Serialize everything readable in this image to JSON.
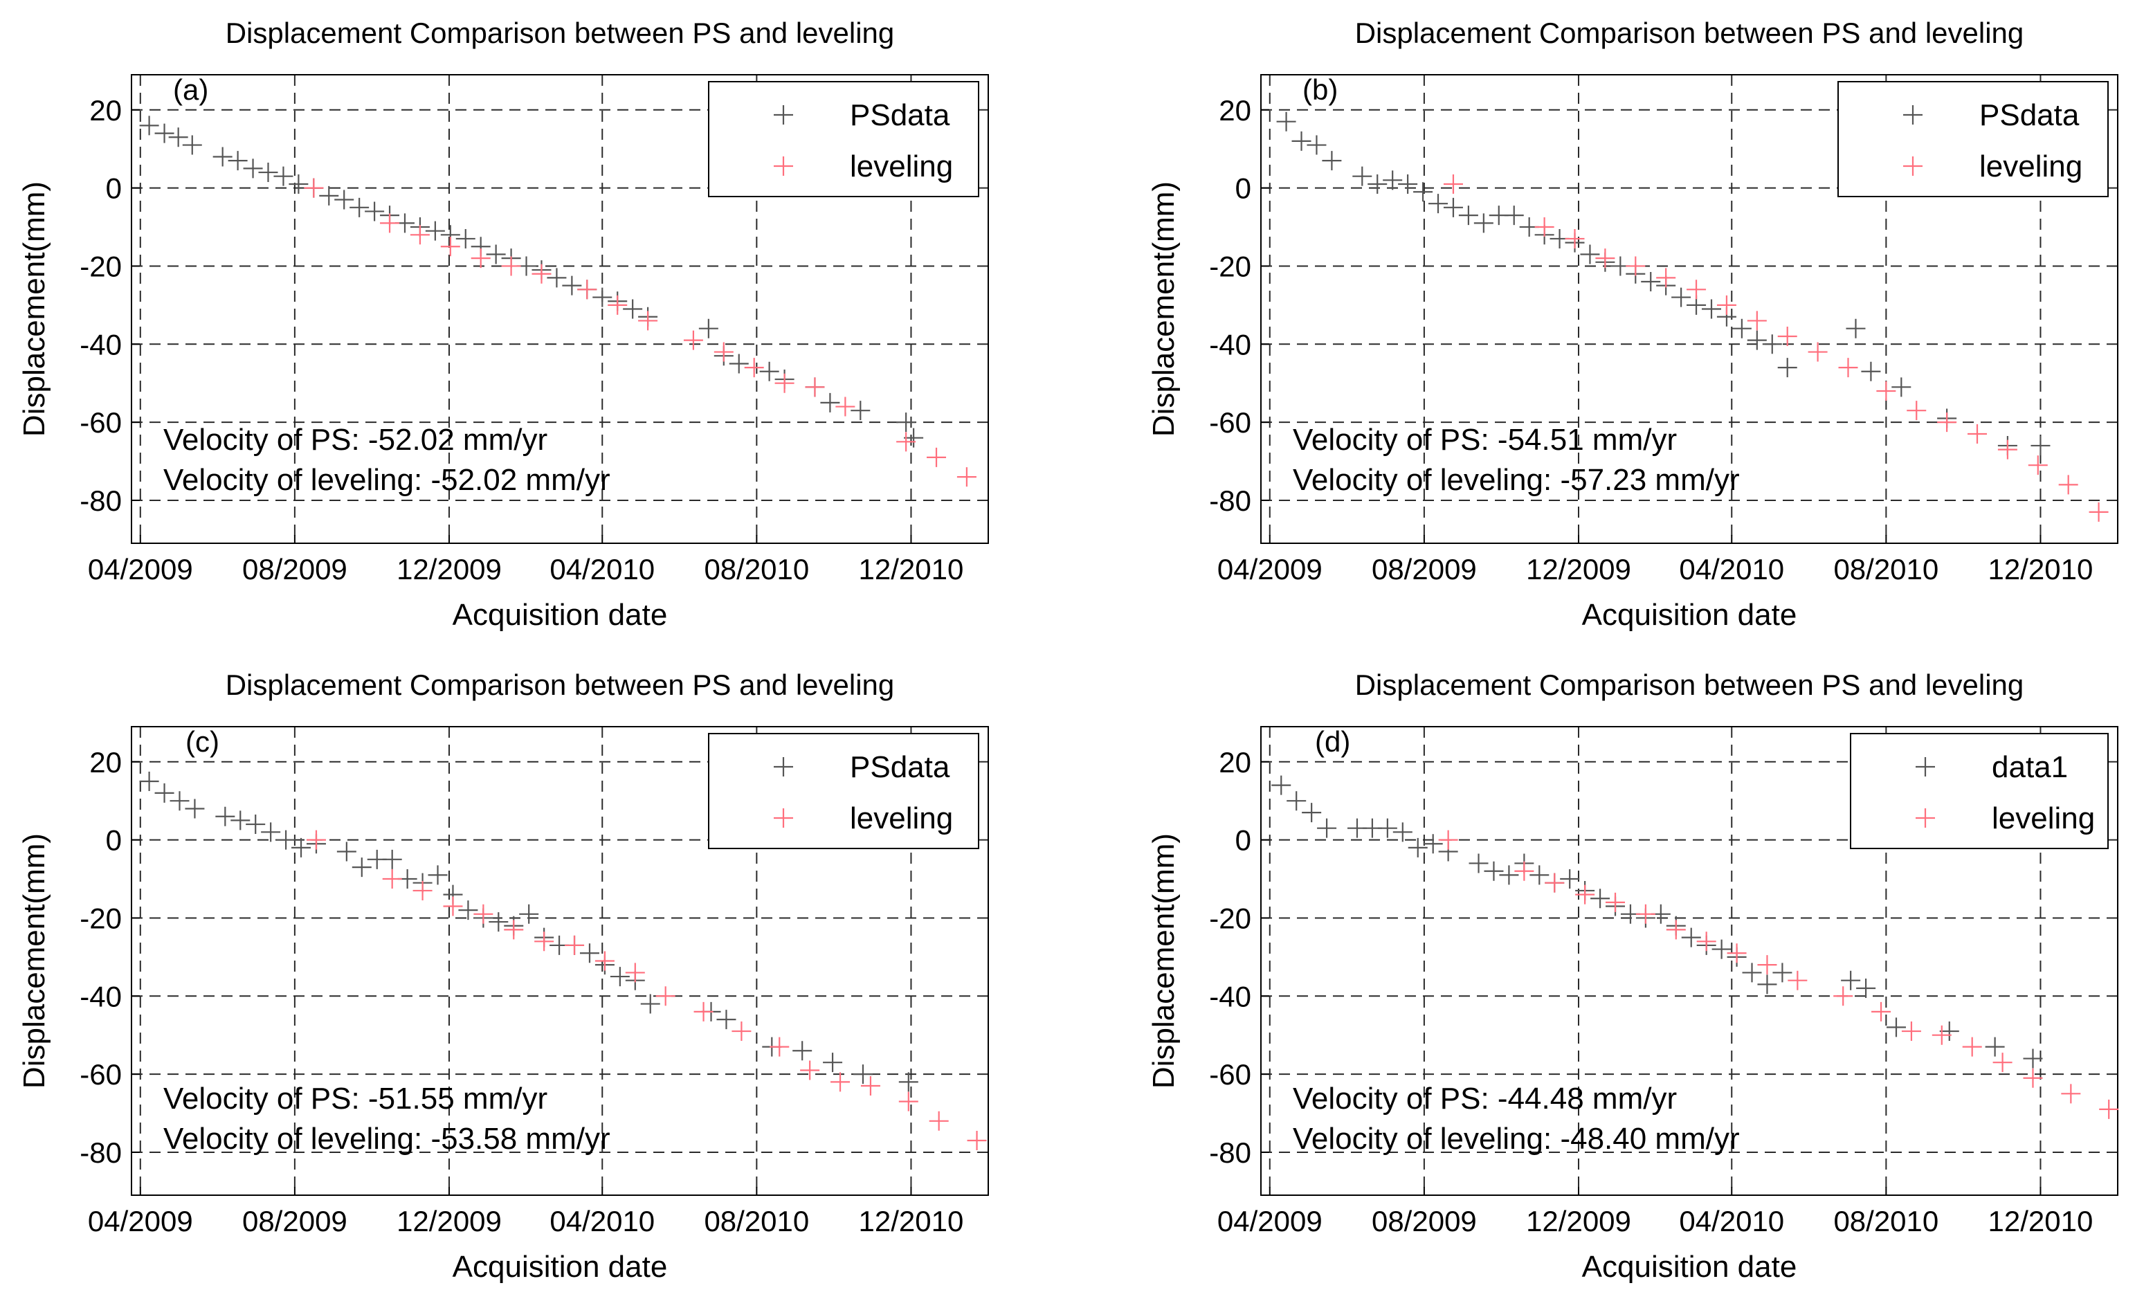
{
  "colors": {
    "ps": "#555555",
    "leveling": "#ff6f7d"
  },
  "chart_data": [
    {
      "type": "scatter",
      "panel_label": "(a)",
      "title": "Displacement Comparison between PS and leveling",
      "xlabel": "Acquisition date",
      "ylabel": "Displacement(mm)",
      "x_ticks": [
        "04/2009",
        "08/2009",
        "12/2009",
        "04/2010",
        "08/2010",
        "12/2010"
      ],
      "y_ticks": [
        20,
        0,
        -20,
        -40,
        -60,
        -80
      ],
      "xlim": [
        "2009-03-25",
        "2011-01-31"
      ],
      "ylim": [
        -91,
        29
      ],
      "grid": true,
      "legend_position": "top-right",
      "annotation_lines": [
        "Velocity of PS: -52.02 mm/yr",
        "Velocity of leveling: -52.02 mm/yr"
      ],
      "series": [
        {
          "name": "PSdata",
          "color": "#555555",
          "x": [
            "2009-04-08",
            "2009-04-20",
            "2009-05-01",
            "2009-05-12",
            "2009-06-05",
            "2009-06-17",
            "2009-06-29",
            "2009-07-11",
            "2009-07-23",
            "2009-08-04",
            "2009-08-16",
            "2009-08-28",
            "2009-09-09",
            "2009-09-21",
            "2009-10-03",
            "2009-10-15",
            "2009-10-27",
            "2009-11-08",
            "2009-11-20",
            "2009-12-02",
            "2009-12-14",
            "2009-12-26",
            "2010-01-07",
            "2010-01-19",
            "2010-01-31",
            "2010-02-12",
            "2010-02-24",
            "2010-03-08",
            "2010-03-20",
            "2010-04-01",
            "2010-04-13",
            "2010-04-25",
            "2010-05-07",
            "2010-06-24",
            "2010-07-06",
            "2010-07-18",
            "2010-08-11",
            "2010-08-23",
            "2010-09-16",
            "2010-09-28",
            "2010-10-22",
            "2010-11-27",
            "2010-12-03"
          ],
          "y": [
            16,
            14,
            13,
            11,
            8,
            7,
            5,
            4,
            3,
            1,
            0,
            -2,
            -3,
            -5,
            -6,
            -7,
            -9,
            -10,
            -11,
            -12,
            -13,
            -15,
            -17,
            -18,
            -20,
            -21,
            -23,
            -25,
            -26,
            -28,
            -29,
            -31,
            -33,
            -36,
            -43,
            -45,
            -47,
            -49,
            -51,
            -55,
            -57,
            -60,
            -64
          ]
        },
        {
          "name": "leveling",
          "color": "#ff6f7d",
          "x": [
            "2009-08-16",
            "2009-10-15",
            "2009-11-08",
            "2009-12-02",
            "2009-12-26",
            "2010-01-19",
            "2010-02-12",
            "2010-03-20",
            "2010-04-13",
            "2010-05-07",
            "2010-06-12",
            "2010-07-06",
            "2010-07-30",
            "2010-08-23",
            "2010-09-16",
            "2010-10-10",
            "2010-11-27",
            "2010-12-21",
            "2011-01-14"
          ],
          "y": [
            0,
            -9,
            -12,
            -15,
            -18,
            -20,
            -22,
            -26,
            -30,
            -34,
            -39,
            -42,
            -46,
            -50,
            -51,
            -56,
            -65,
            -69,
            -74
          ]
        }
      ]
    },
    {
      "type": "scatter",
      "panel_label": "(b)",
      "title": "Displacement Comparison between PS and leveling",
      "xlabel": "Acquisition date",
      "ylabel": "Displacement(mm)",
      "x_ticks": [
        "04/2009",
        "08/2009",
        "12/2009",
        "04/2010",
        "08/2010",
        "12/2010"
      ],
      "y_ticks": [
        20,
        0,
        -20,
        -40,
        -60,
        -80
      ],
      "xlim": [
        "2009-03-25",
        "2011-01-31"
      ],
      "ylim": [
        -91,
        29
      ],
      "grid": true,
      "legend_position": "top-right",
      "annotation_lines": [
        "Velocity of PS: -54.51 mm/yr",
        "Velocity of leveling: -57.23 mm/yr"
      ],
      "series": [
        {
          "name": "PSdata",
          "color": "#555555",
          "x": [
            "2009-04-14",
            "2009-04-26",
            "2009-05-08",
            "2009-05-20",
            "2009-06-13",
            "2009-06-25",
            "2009-07-07",
            "2009-07-19",
            "2009-07-31",
            "2009-08-12",
            "2009-08-24",
            "2009-09-05",
            "2009-09-17",
            "2009-09-29",
            "2009-10-11",
            "2009-10-23",
            "2009-11-04",
            "2009-11-16",
            "2009-11-28",
            "2009-12-10",
            "2009-12-22",
            "2010-01-03",
            "2010-01-15",
            "2010-01-27",
            "2010-02-08",
            "2010-02-20",
            "2010-03-04",
            "2010-03-16",
            "2010-03-28",
            "2010-04-09",
            "2010-04-21",
            "2010-05-03",
            "2010-05-15",
            "2010-07-08",
            "2010-07-20",
            "2010-08-13",
            "2010-09-18",
            "2010-11-05",
            "2010-12-01"
          ],
          "y": [
            17,
            12,
            11,
            7,
            3,
            1,
            2,
            1,
            -1,
            -4,
            -5,
            -7,
            -9,
            -7,
            -7,
            -10,
            -12,
            -13,
            -14,
            -17,
            -19,
            -20,
            -22,
            -24,
            -25,
            -28,
            -30,
            -31,
            -33,
            -36,
            -39,
            -40,
            -46,
            -36,
            -47,
            -51,
            -59,
            -66,
            -66
          ]
        },
        {
          "name": "leveling",
          "color": "#ff6f7d",
          "x": [
            "2009-08-24",
            "2009-11-04",
            "2009-11-28",
            "2009-12-22",
            "2010-01-15",
            "2010-02-08",
            "2010-03-04",
            "2010-03-28",
            "2010-04-21",
            "2010-05-15",
            "2010-06-08",
            "2010-07-02",
            "2010-08-01",
            "2010-08-25",
            "2010-09-18",
            "2010-10-12",
            "2010-11-05",
            "2010-11-29",
            "2010-12-23",
            "2011-01-16"
          ],
          "y": [
            1,
            -10,
            -13,
            -18,
            -20,
            -23,
            -26,
            -30,
            -34,
            -38,
            -42,
            -46,
            -52,
            -57,
            -60,
            -63,
            -67,
            -71,
            -76,
            -83
          ]
        }
      ]
    },
    {
      "type": "scatter",
      "panel_label": "(c)",
      "title": "Displacement Comparison between PS and leveling",
      "xlabel": "Acquisition date",
      "ylabel": "Displacement(mm)",
      "x_ticks": [
        "04/2009",
        "08/2009",
        "12/2009",
        "04/2010",
        "08/2010",
        "12/2010"
      ],
      "y_ticks": [
        20,
        0,
        -20,
        -40,
        -60,
        -80
      ],
      "xlim": [
        "2009-03-25",
        "2011-01-31"
      ],
      "ylim": [
        -91,
        29
      ],
      "grid": true,
      "legend_position": "top-right",
      "annotation_lines": [
        "Velocity of PS: -51.55 mm/yr",
        "Velocity of leveling: -53.58 mm/yr"
      ],
      "series": [
        {
          "name": "PSdata",
          "color": "#555555",
          "x": [
            "2009-04-08",
            "2009-04-20",
            "2009-05-02",
            "2009-05-14",
            "2009-06-07",
            "2009-06-19",
            "2009-07-01",
            "2009-07-13",
            "2009-07-25",
            "2009-08-06",
            "2009-08-18",
            "2009-09-11",
            "2009-09-23",
            "2009-10-05",
            "2009-10-17",
            "2009-10-29",
            "2009-11-10",
            "2009-11-22",
            "2009-12-04",
            "2009-12-16",
            "2009-12-28",
            "2010-01-09",
            "2010-01-21",
            "2010-02-02",
            "2010-02-14",
            "2010-02-26",
            "2010-03-10",
            "2010-03-22",
            "2010-04-03",
            "2010-04-15",
            "2010-04-27",
            "2010-05-09",
            "2010-06-26",
            "2010-07-08",
            "2010-08-13",
            "2010-09-06",
            "2010-09-30",
            "2010-10-24",
            "2010-11-29"
          ],
          "y": [
            15,
            12,
            10,
            8,
            6,
            5,
            4,
            2,
            0,
            -2,
            -1,
            -3,
            -7,
            -5,
            -5,
            -10,
            -11,
            -9,
            -14,
            -18,
            -20,
            -21,
            -22,
            -19,
            -25,
            -27,
            -27,
            -29,
            -32,
            -35,
            -36,
            -42,
            -44,
            -46,
            -53,
            -54,
            -57,
            -60,
            -62
          ]
        },
        {
          "name": "leveling",
          "color": "#ff6f7d",
          "x": [
            "2009-08-18",
            "2009-10-17",
            "2009-11-10",
            "2009-12-04",
            "2009-12-28",
            "2010-01-21",
            "2010-02-14",
            "2010-03-10",
            "2010-04-03",
            "2010-04-27",
            "2010-05-21",
            "2010-06-20",
            "2010-07-20",
            "2010-08-19",
            "2010-09-12",
            "2010-10-06",
            "2010-10-30",
            "2010-11-29",
            "2010-12-23",
            "2011-01-22"
          ],
          "y": [
            0,
            -10,
            -13,
            -17,
            -19,
            -23,
            -26,
            -27,
            -31,
            -34,
            -40,
            -44,
            -49,
            -53,
            -59,
            -62,
            -63,
            -67,
            -72,
            -77
          ]
        }
      ]
    },
    {
      "type": "scatter",
      "panel_label": "(d)",
      "title": "Displacement Comparison between PS and leveling",
      "xlabel": "Acquisition date",
      "ylabel": "Displacement(mm)",
      "x_ticks": [
        "04/2009",
        "08/2009",
        "12/2009",
        "04/2010",
        "08/2010",
        "12/2010"
      ],
      "y_ticks": [
        20,
        0,
        -20,
        -40,
        -60,
        -80
      ],
      "xlim": [
        "2009-03-25",
        "2011-01-31"
      ],
      "ylim": [
        -91,
        29
      ],
      "grid": true,
      "legend_position": "top-right",
      "annotation_lines": [
        "Velocity of PS: -44.48 mm/yr",
        "Velocity of leveling: -48.40 mm/yr"
      ],
      "series": [
        {
          "name": "data1",
          "color": "#555555",
          "x": [
            "2009-04-10",
            "2009-04-22",
            "2009-05-04",
            "2009-05-16",
            "2009-06-09",
            "2009-06-21",
            "2009-07-03",
            "2009-07-15",
            "2009-07-27",
            "2009-08-08",
            "2009-08-20",
            "2009-09-13",
            "2009-09-25",
            "2009-10-07",
            "2009-10-19",
            "2009-10-31",
            "2009-11-12",
            "2009-11-24",
            "2009-12-06",
            "2009-12-18",
            "2009-12-30",
            "2010-01-11",
            "2010-01-23",
            "2010-02-04",
            "2010-02-16",
            "2010-02-28",
            "2010-03-12",
            "2010-03-24",
            "2010-04-05",
            "2010-04-17",
            "2010-04-29",
            "2010-05-11",
            "2010-07-04",
            "2010-07-16",
            "2010-08-09",
            "2010-09-20",
            "2010-10-26",
            "2010-11-25"
          ],
          "y": [
            14,
            10,
            7,
            3,
            3,
            3,
            3,
            2,
            -2,
            -1,
            -3,
            -6,
            -8,
            -9,
            -6,
            -9,
            -11,
            -10,
            -13,
            -15,
            -17,
            -19,
            -20,
            -19,
            -22,
            -25,
            -27,
            -28,
            -30,
            -34,
            -37,
            -34,
            -36,
            -38,
            -48,
            -49,
            -53,
            -56
          ]
        },
        {
          "name": "leveling",
          "color": "#ff6f7d",
          "x": [
            "2009-08-20",
            "2009-10-19",
            "2009-11-12",
            "2009-12-06",
            "2009-12-30",
            "2010-01-23",
            "2010-02-16",
            "2010-03-12",
            "2010-04-05",
            "2010-04-29",
            "2010-05-23",
            "2010-06-28",
            "2010-07-28",
            "2010-08-21",
            "2010-09-14",
            "2010-10-08",
            "2010-11-01",
            "2010-11-25",
            "2010-12-25",
            "2011-01-24"
          ],
          "y": [
            0,
            -8,
            -11,
            -14,
            -16,
            -19,
            -23,
            -26,
            -29,
            -32,
            -36,
            -40,
            -44,
            -49,
            -50,
            -53,
            -57,
            -61,
            -65,
            -69
          ]
        }
      ]
    }
  ]
}
